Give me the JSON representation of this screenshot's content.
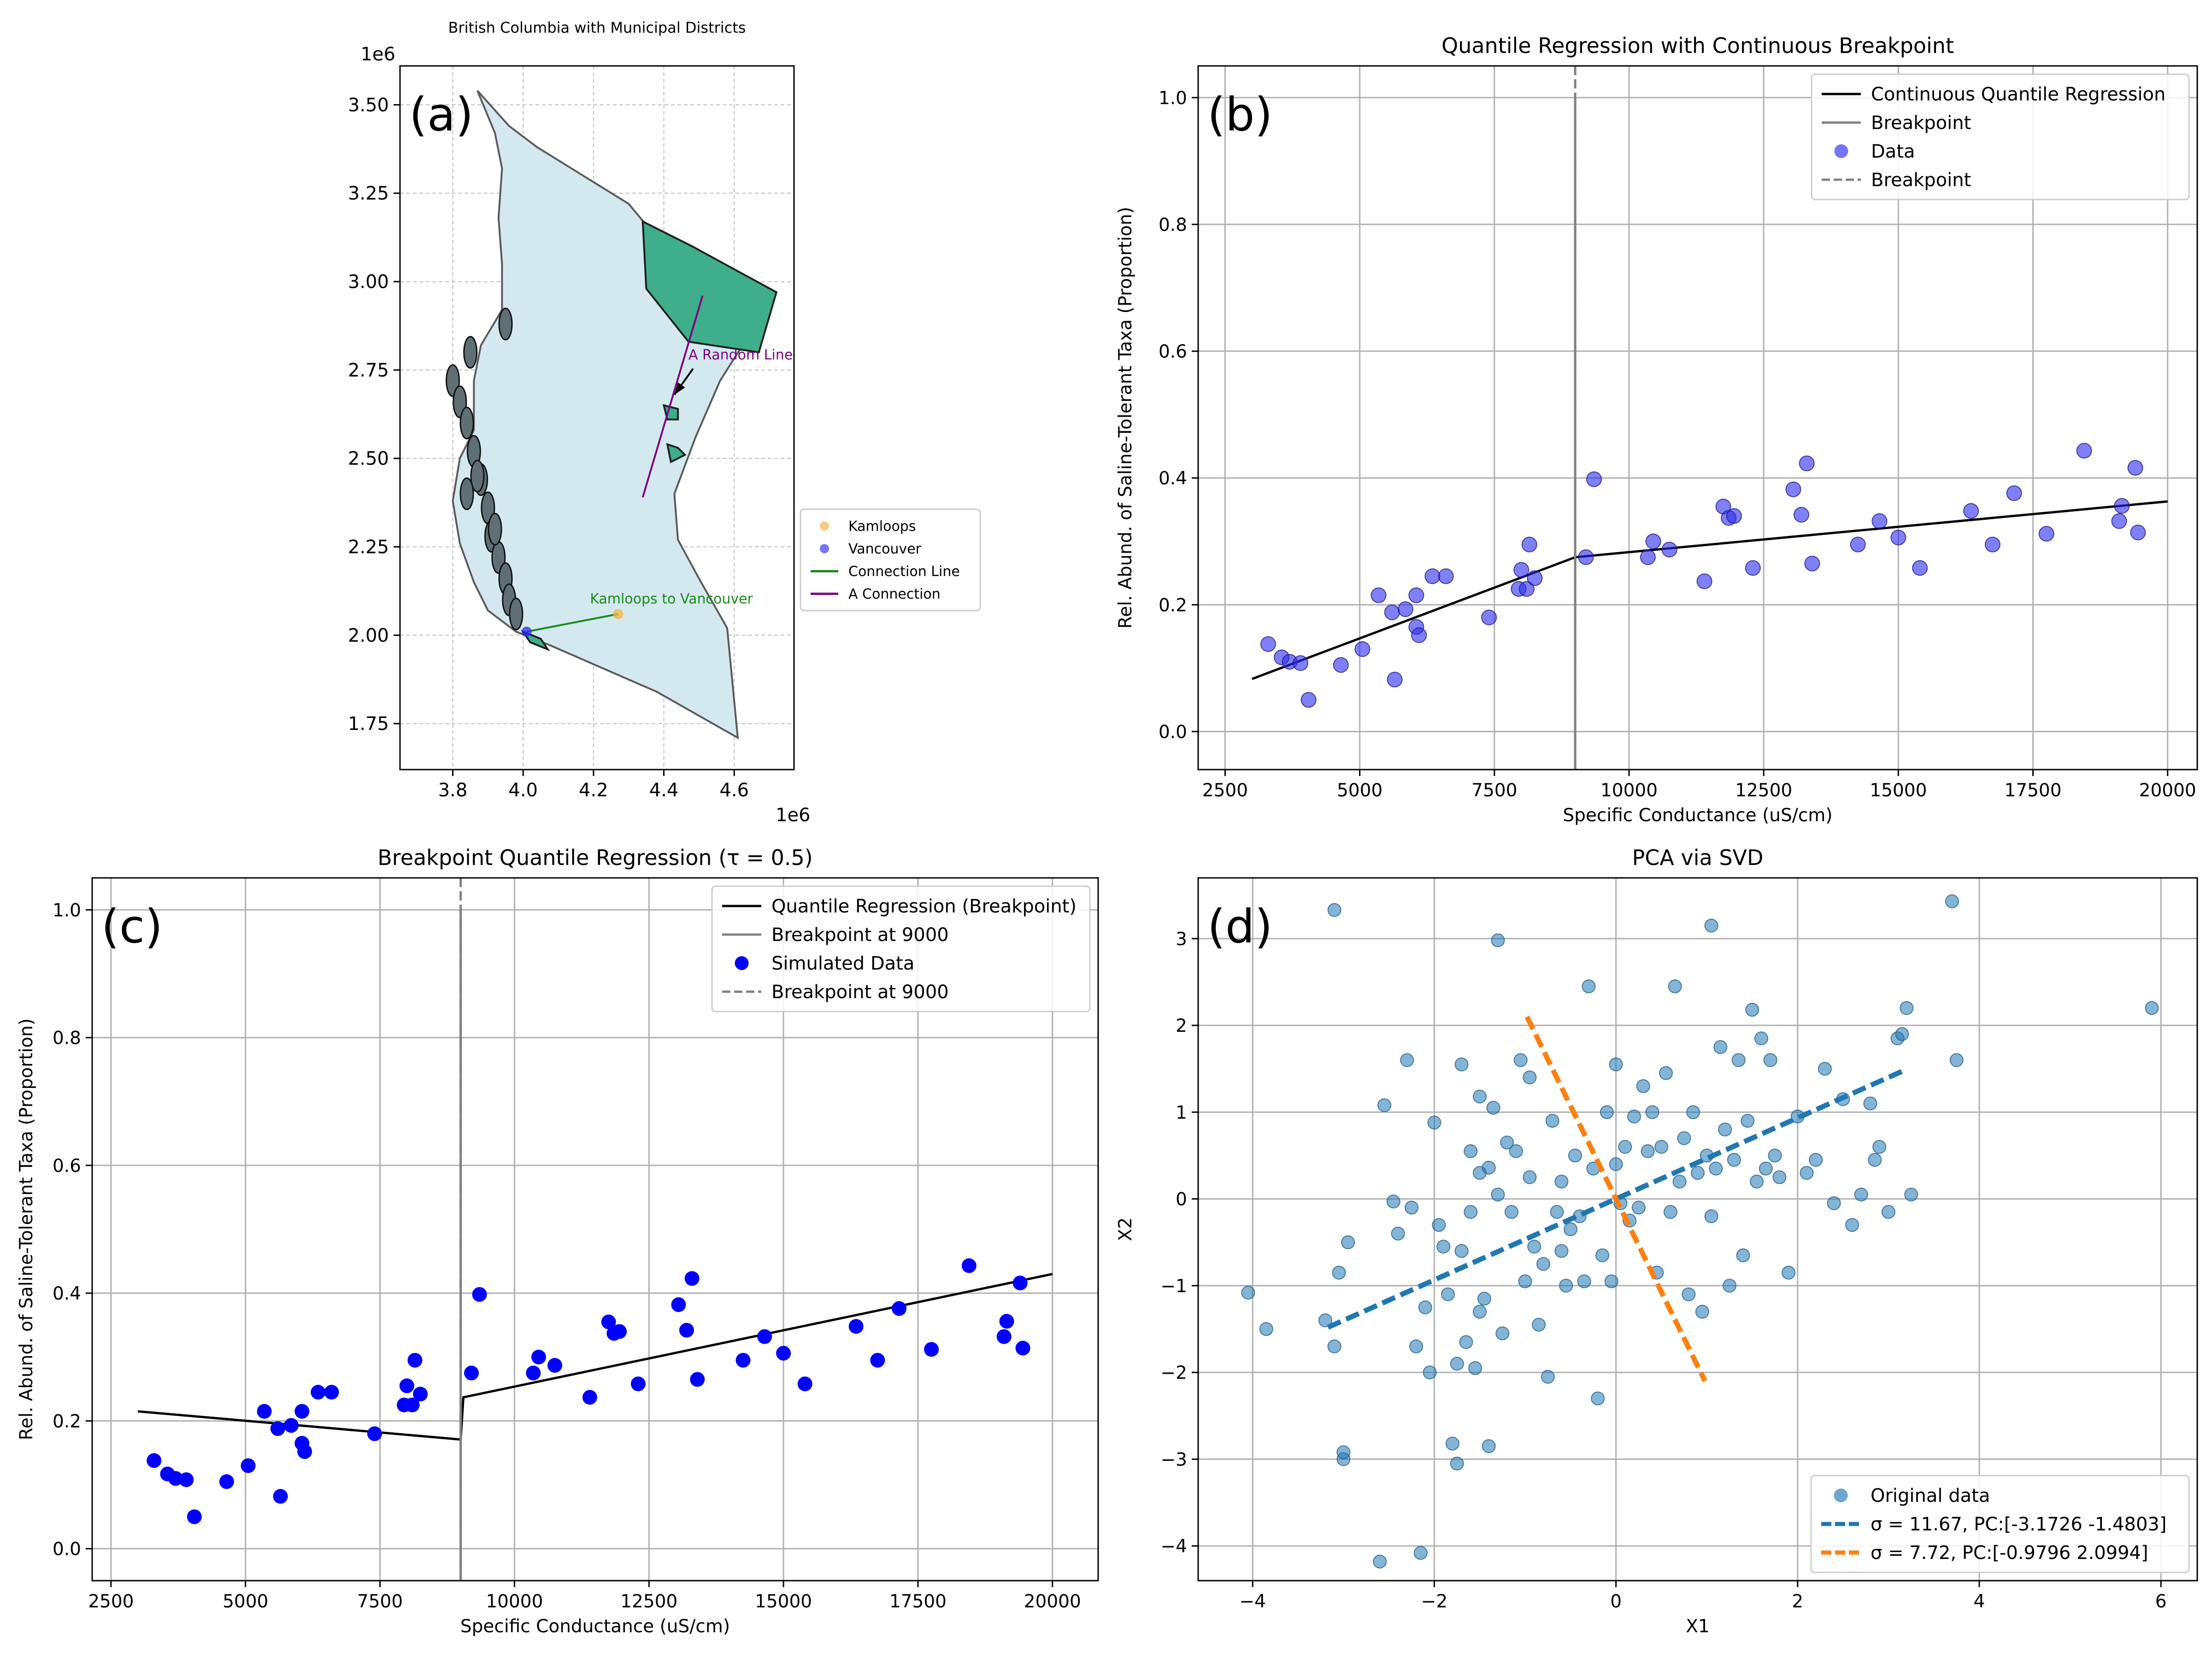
{
  "chart_data": [
    {
      "panel": "(a)",
      "type": "map",
      "title": "British Columbia with Municipal Districts",
      "xlabel": "",
      "ylabel": "",
      "x_offset_label": "1e6",
      "y_offset_label": "1e6",
      "xlim": [
        3.65,
        4.77
      ],
      "ylim": [
        1.62,
        3.61
      ],
      "xticks": [
        3.8,
        4.0,
        4.2,
        4.4,
        4.6
      ],
      "yticks": [
        1.75,
        2.0,
        2.25,
        2.5,
        2.75,
        3.0,
        3.25,
        3.5
      ],
      "xtick_labels": [
        "3.8",
        "4.0",
        "4.2",
        "4.4",
        "4.6"
      ],
      "ytick_labels": [
        "1.75",
        "2.00",
        "2.25",
        "2.50",
        "2.75",
        "3.00",
        "3.25",
        "3.50"
      ],
      "grid": true,
      "province_outline": [
        [
          3.87,
          3.54
        ],
        [
          3.96,
          3.44
        ],
        [
          4.04,
          3.38
        ],
        [
          4.17,
          3.3
        ],
        [
          4.3,
          3.22
        ],
        [
          4.35,
          3.16
        ],
        [
          4.46,
          3.08
        ],
        [
          4.72,
          2.97
        ],
        [
          4.56,
          2.72
        ],
        [
          4.49,
          2.56
        ],
        [
          4.43,
          2.4
        ],
        [
          4.44,
          2.27
        ],
        [
          4.5,
          2.16
        ],
        [
          4.58,
          2.02
        ],
        [
          4.61,
          1.71
        ],
        [
          4.38,
          1.84
        ],
        [
          4.08,
          1.97
        ],
        [
          3.98,
          2.01
        ],
        [
          3.9,
          2.07
        ],
        [
          3.86,
          2.15
        ],
        [
          3.82,
          2.26
        ],
        [
          3.8,
          2.38
        ],
        [
          3.82,
          2.5
        ],
        [
          3.86,
          2.58
        ],
        [
          3.86,
          2.72
        ],
        [
          3.88,
          2.82
        ],
        [
          3.94,
          2.92
        ],
        [
          3.94,
          3.05
        ],
        [
          3.93,
          3.18
        ],
        [
          3.94,
          3.32
        ],
        [
          3.92,
          3.42
        ],
        [
          3.87,
          3.54
        ]
      ],
      "northeast_district": [
        [
          4.34,
          3.17
        ],
        [
          4.48,
          3.1
        ],
        [
          4.72,
          2.97
        ],
        [
          4.67,
          2.8
        ],
        [
          4.47,
          2.83
        ],
        [
          4.35,
          2.98
        ],
        [
          4.34,
          3.17
        ]
      ],
      "small_districts": [
        [
          [
            4.4,
            2.65
          ],
          [
            4.44,
            2.64
          ],
          [
            4.44,
            2.61
          ],
          [
            4.41,
            2.61
          ]
        ],
        [
          [
            4.41,
            2.54
          ],
          [
            4.44,
            2.53
          ],
          [
            4.46,
            2.51
          ],
          [
            4.42,
            2.49
          ]
        ],
        [
          [
            4.0,
            2.01
          ],
          [
            4.05,
            1.99
          ],
          [
            4.07,
            1.96
          ],
          [
            4.02,
            1.98
          ]
        ]
      ],
      "points": [
        {
          "name": "Kamloops",
          "x": 4.27,
          "y": 2.06,
          "color": "#f5b13c"
        },
        {
          "name": "Vancouver",
          "x": 4.01,
          "y": 2.01,
          "color": "#2b2bf0"
        }
      ],
      "lines": [
        {
          "name": "Connection Line",
          "color": "#1a8a1a",
          "points": [
            [
              4.01,
              2.01
            ],
            [
              4.27,
              2.06
            ]
          ]
        },
        {
          "name": "A Connection",
          "color": "#800080",
          "points": [
            [
              4.34,
              2.39
            ],
            [
              4.51,
              2.96
            ]
          ]
        }
      ],
      "annotations": [
        {
          "text": "A Random Line Element",
          "color": "#800080",
          "x": 4.47,
          "y": 2.78,
          "arrow_to": [
            4.43,
            2.68
          ]
        },
        {
          "text": "Kamloops to Vancouver",
          "color": "#1a8a1a",
          "x": 4.19,
          "y": 2.09
        }
      ],
      "legend": [
        "Kamloops",
        "Vancouver",
        "Connection Line",
        "A Connection"
      ],
      "legend_position": "outside right",
      "panel_label": "(a)"
    },
    {
      "panel": "(b)",
      "type": "scatter",
      "title": "Quantile Regression with Continuous Breakpoint",
      "xlabel": "Specific Conductance (uS/cm)",
      "ylabel": "Rel. Abund. of Saline-Tolerant Taxa (Proportion)",
      "xlim": [
        2000,
        20550
      ],
      "ylim": [
        -0.06,
        1.05
      ],
      "xticks": [
        2500,
        5000,
        7500,
        10000,
        12500,
        15000,
        17500,
        20000
      ],
      "yticks": [
        0.0,
        0.2,
        0.4,
        0.6,
        0.8,
        1.0
      ],
      "xtick_labels": [
        "2500",
        "5000",
        "7500",
        "10000",
        "12500",
        "15000",
        "17500",
        "20000"
      ],
      "ytick_labels": [
        "0.0",
        "0.2",
        "0.4",
        "0.6",
        "0.8",
        "1.0"
      ],
      "grid": true,
      "series": [
        {
          "name": "Continuous Quantile Regression",
          "kind": "line",
          "color": "#000000",
          "x": [
            3000,
            9000,
            20000
          ],
          "y": [
            0.083,
            0.275,
            0.363
          ]
        },
        {
          "name": "Breakpoint",
          "kind": "vline",
          "color": "#808080",
          "x": 9000
        },
        {
          "name": "Data",
          "kind": "scatter",
          "color": "#2b2bf0",
          "x": [
            3300,
            3550,
            3700,
            3900,
            4050,
            4650,
            5050,
            5350,
            5600,
            5850,
            5650,
            6050,
            6100,
            6050,
            6350,
            6600,
            7400,
            7950,
            8000,
            8100,
            8150,
            8250,
            9200,
            9350,
            10350,
            10450,
            10750,
            11400,
            11750,
            11850,
            11950,
            12300,
            13050,
            13200,
            13300,
            13400,
            14250,
            14650,
            15000,
            15400,
            16350,
            16750,
            17150,
            17750,
            18450,
            19100,
            19150,
            19400,
            19450
          ],
          "y": [
            0.138,
            0.117,
            0.11,
            0.108,
            0.05,
            0.105,
            0.13,
            0.215,
            0.188,
            0.193,
            0.082,
            0.165,
            0.152,
            0.215,
            0.245,
            0.245,
            0.18,
            0.225,
            0.255,
            0.225,
            0.295,
            0.242,
            0.275,
            0.398,
            0.275,
            0.3,
            0.287,
            0.237,
            0.355,
            0.337,
            0.34,
            0.258,
            0.382,
            0.342,
            0.423,
            0.265,
            0.295,
            0.332,
            0.306,
            0.258,
            0.348,
            0.295,
            0.376,
            0.312,
            0.443,
            0.332,
            0.356,
            0.416,
            0.314
          ]
        },
        {
          "name": "Breakpoint",
          "kind": "vline-dashed",
          "color": "#808080",
          "x": 9000
        }
      ],
      "legend": [
        "Continuous Quantile Regression",
        "Breakpoint",
        "Data",
        "Breakpoint"
      ],
      "legend_position": "top-right",
      "panel_label": "(b)"
    },
    {
      "panel": "(c)",
      "type": "scatter",
      "title": "Breakpoint Quantile Regression (τ = 0.5)",
      "xlabel": "Specific Conductance (uS/cm)",
      "ylabel": "Rel. Abund. of Saline-Tolerant Taxa (Proportion)",
      "xlim": [
        2150,
        20850
      ],
      "ylim": [
        -0.05,
        1.05
      ],
      "xticks": [
        2500,
        5000,
        7500,
        10000,
        12500,
        15000,
        17500,
        20000
      ],
      "yticks": [
        0.0,
        0.2,
        0.4,
        0.6,
        0.8,
        1.0
      ],
      "xtick_labels": [
        "2500",
        "5000",
        "7500",
        "10000",
        "12500",
        "15000",
        "17500",
        "20000"
      ],
      "ytick_labels": [
        "0.0",
        "0.2",
        "0.4",
        "0.6",
        "0.8",
        "1.0"
      ],
      "grid": true,
      "series": [
        {
          "name": "Quantile Regression (Breakpoint)",
          "kind": "line",
          "color": "#000000",
          "x": [
            3000,
            8990,
            9000,
            9050,
            20000
          ],
          "y": [
            0.215,
            0.171,
            0.171,
            0.237,
            0.43
          ]
        },
        {
          "name": "Breakpoint at 9000",
          "kind": "vline",
          "color": "#808080",
          "x": 9000
        },
        {
          "name": "Simulated Data",
          "kind": "scatter",
          "color": "#0000ff",
          "x": [
            3300,
            3550,
            3700,
            3900,
            4050,
            4650,
            5050,
            5350,
            5600,
            5850,
            5650,
            6050,
            6100,
            6050,
            6350,
            6600,
            7400,
            7950,
            8000,
            8100,
            8150,
            8250,
            9200,
            9350,
            10350,
            10450,
            10750,
            11400,
            11750,
            11850,
            11950,
            12300,
            13050,
            13200,
            13300,
            13400,
            14250,
            14650,
            15000,
            15400,
            16350,
            16750,
            17150,
            17750,
            18450,
            19100,
            19150,
            19400,
            19450
          ],
          "y": [
            0.138,
            0.117,
            0.11,
            0.108,
            0.05,
            0.105,
            0.13,
            0.215,
            0.188,
            0.193,
            0.082,
            0.165,
            0.152,
            0.215,
            0.245,
            0.245,
            0.18,
            0.225,
            0.255,
            0.225,
            0.295,
            0.242,
            0.275,
            0.398,
            0.275,
            0.3,
            0.287,
            0.237,
            0.355,
            0.337,
            0.34,
            0.258,
            0.382,
            0.342,
            0.423,
            0.265,
            0.295,
            0.332,
            0.306,
            0.258,
            0.348,
            0.295,
            0.376,
            0.312,
            0.443,
            0.332,
            0.356,
            0.416,
            0.314
          ]
        },
        {
          "name": "Breakpoint at 9000",
          "kind": "vline-dashed",
          "color": "#808080",
          "x": 9000
        }
      ],
      "legend": [
        "Quantile Regression (Breakpoint)",
        "Breakpoint at 9000",
        "Simulated Data",
        "Breakpoint at 9000"
      ],
      "legend_position": "top-right",
      "panel_label": "(c)"
    },
    {
      "panel": "(d)",
      "type": "scatter",
      "title": "PCA via SVD",
      "xlabel": "X1",
      "ylabel": "X2",
      "xlim": [
        -4.6,
        6.4
      ],
      "ylim": [
        -4.4,
        3.7
      ],
      "xticks": [
        -4,
        -2,
        0,
        2,
        4,
        6
      ],
      "yticks": [
        -4,
        -3,
        -2,
        -1,
        0,
        1,
        2,
        3
      ],
      "xtick_labels": [
        "−4",
        "−2",
        "0",
        "2",
        "4",
        "6"
      ],
      "ytick_labels": [
        "−4",
        "−3",
        "−2",
        "−1",
        "0",
        "1",
        "2",
        "3"
      ],
      "grid": true,
      "series": [
        {
          "name": "Original data",
          "kind": "scatter",
          "color": "#1f77b4",
          "x": [
            -3.2,
            -3.1,
            -3.05,
            -3.0,
            -3.0,
            -2.95,
            -2.6,
            -2.55,
            -2.45,
            -2.4,
            -2.3,
            -2.25,
            -2.2,
            -2.15,
            -2.1,
            -2.05,
            -2.0,
            -1.95,
            -1.9,
            -1.85,
            -1.8,
            -1.75,
            -1.75,
            -1.7,
            -1.7,
            -1.65,
            -1.6,
            -1.6,
            -1.55,
            -1.5,
            -1.5,
            -1.45,
            -1.4,
            -1.4,
            -1.35,
            -1.3,
            -1.3,
            -1.25,
            -1.2,
            -1.15,
            -1.1,
            -1.05,
            -1.0,
            -0.95,
            -0.95,
            -0.9,
            -0.85,
            -0.8,
            -0.75,
            -0.7,
            -0.65,
            -0.6,
            -0.55,
            -0.5,
            -0.45,
            -0.4,
            -0.35,
            -0.3,
            -0.25,
            -0.2,
            -0.15,
            -0.1,
            -0.05,
            0.0,
            0.0,
            0.05,
            0.1,
            0.15,
            0.2,
            0.25,
            0.3,
            0.35,
            0.4,
            0.45,
            0.5,
            0.55,
            0.6,
            0.65,
            0.7,
            0.75,
            0.8,
            0.85,
            0.9,
            0.95,
            1.0,
            1.05,
            1.1,
            1.15,
            1.2,
            1.25,
            1.3,
            1.35,
            1.4,
            1.45,
            1.5,
            1.55,
            1.6,
            1.65,
            1.7,
            1.75,
            1.8,
            1.9,
            2.0,
            2.1,
            2.2,
            2.3,
            2.4,
            2.5,
            2.6,
            2.7,
            2.8,
            2.9,
            3.0,
            3.1,
            3.15,
            3.2,
            3.25,
            3.7,
            3.75,
            5.9,
            -3.1,
            -0.6,
            -4.05,
            -3.85,
            -1.5,
            1.05,
            2.85
          ],
          "y": [
            -1.4,
            3.33,
            -0.85,
            -3.0,
            -2.92,
            -0.5,
            -4.18,
            1.08,
            -0.03,
            -0.4,
            1.6,
            -0.1,
            -1.7,
            -4.08,
            -1.25,
            -2.0,
            0.88,
            -0.3,
            -0.55,
            -1.1,
            -2.82,
            -3.05,
            -1.9,
            1.55,
            -0.6,
            -1.65,
            0.55,
            -0.15,
            -1.95,
            1.18,
            0.3,
            -1.15,
            0.36,
            -2.85,
            1.05,
            0.05,
            2.98,
            -1.55,
            0.65,
            -0.15,
            0.55,
            1.6,
            -0.95,
            0.25,
            1.4,
            -0.55,
            -1.45,
            -0.75,
            -2.05,
            0.9,
            -0.15,
            0.2,
            -1.0,
            -0.35,
            0.5,
            -0.2,
            -0.95,
            2.45,
            0.35,
            -2.3,
            -0.65,
            1.0,
            -0.95,
            0.4,
            1.55,
            -0.05,
            0.6,
            -0.25,
            0.95,
            -0.1,
            1.3,
            0.55,
            1.0,
            -0.85,
            0.6,
            1.45,
            -0.15,
            2.45,
            0.2,
            0.7,
            -1.1,
            1.0,
            0.3,
            -1.3,
            0.5,
            -0.2,
            0.35,
            1.75,
            0.8,
            -1.0,
            0.45,
            1.6,
            -0.65,
            0.9,
            2.18,
            0.2,
            1.85,
            0.35,
            1.6,
            0.5,
            0.25,
            -0.85,
            0.95,
            0.3,
            0.45,
            1.5,
            -0.05,
            1.15,
            -0.3,
            0.05,
            1.1,
            0.6,
            -0.15,
            1.85,
            1.9,
            2.2,
            0.05,
            3.43,
            1.6,
            2.2,
            -1.7,
            -0.6,
            -1.08,
            -1.5,
            -1.3,
            3.15,
            0.45
          ]
        },
        {
          "name": "σ = 11.67, PC:[-3.1726 -1.4803]",
          "kind": "line-dashed",
          "color": "#1f77b4",
          "x": [
            -3.17,
            3.17
          ],
          "y": [
            -1.48,
            1.48
          ]
        },
        {
          "name": "σ = 7.72, PC:[-0.9796  2.0994]",
          "kind": "line-dashed",
          "color": "#ff7f0e",
          "x": [
            -0.98,
            0.98
          ],
          "y": [
            2.1,
            -2.1
          ]
        }
      ],
      "legend": [
        "Original data",
        "σ = 11.67, PC:[-3.1726 -1.4803]",
        "σ = 7.72, PC:[-0.9796  2.0994]"
      ],
      "legend_position": "bottom-right",
      "panel_label": "(d)"
    }
  ]
}
